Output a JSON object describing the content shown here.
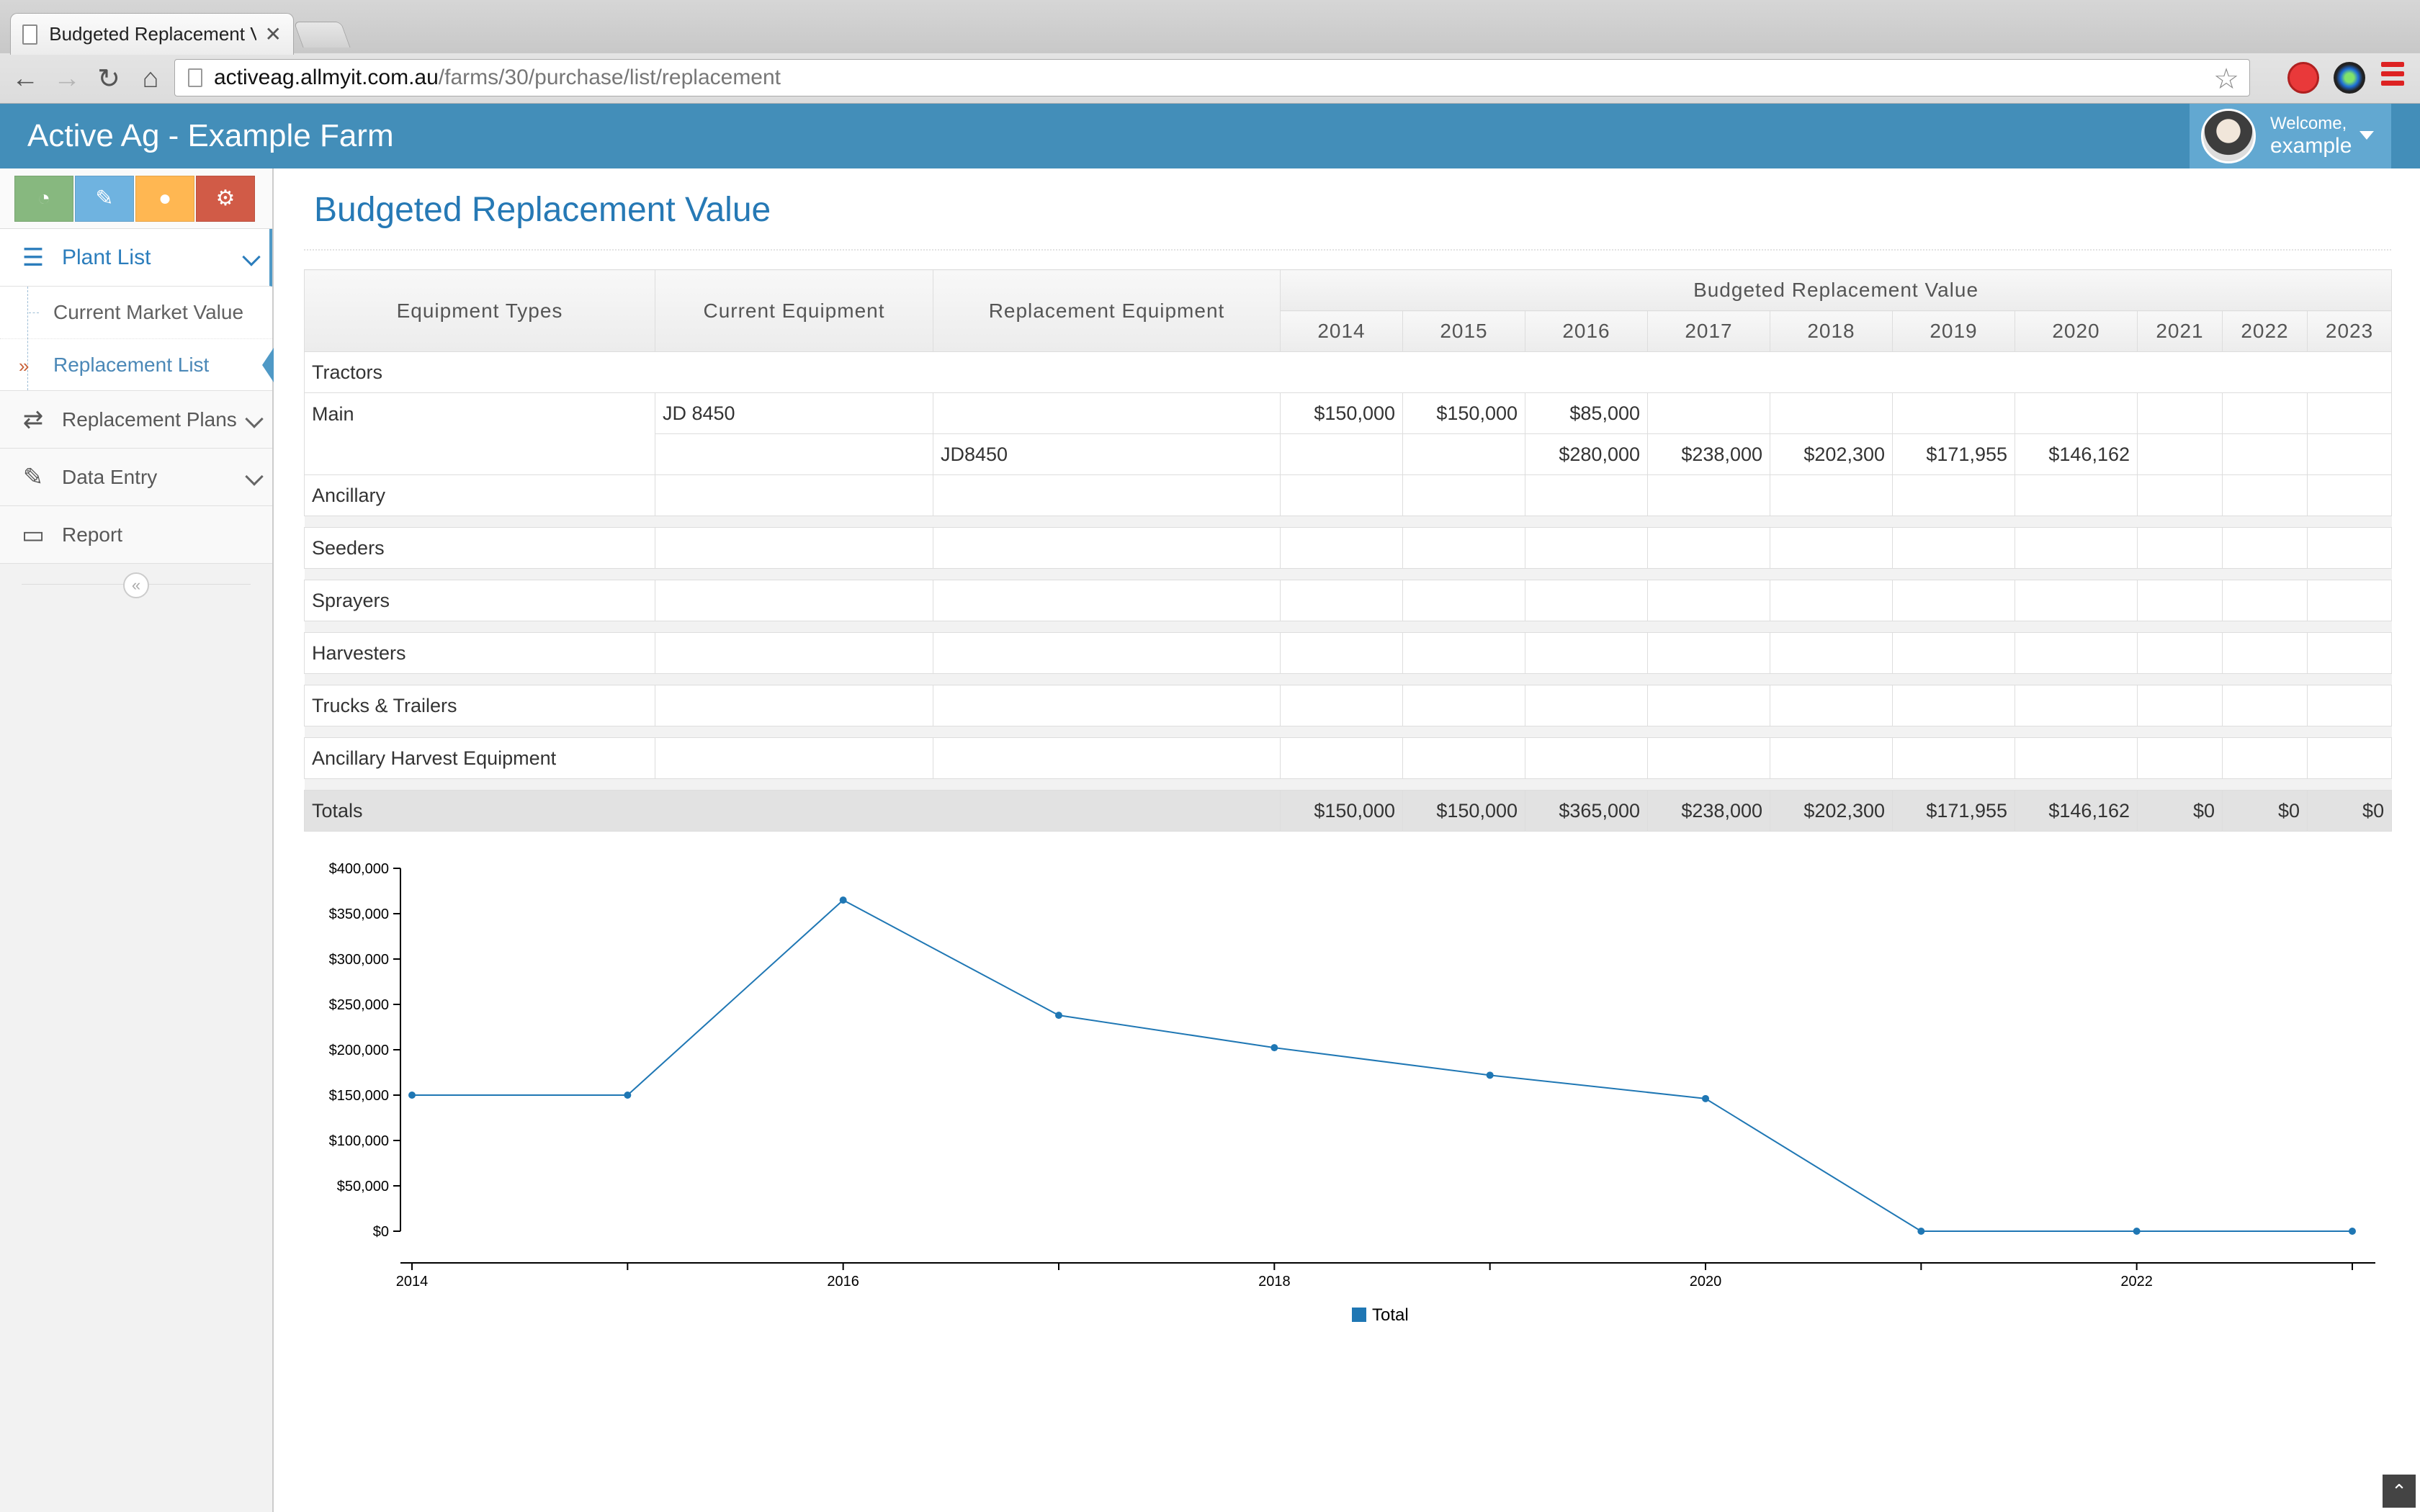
{
  "browser": {
    "tab_title": "Budgeted Replacement Val",
    "url_host": "activeag.allmyit.com.au",
    "url_path": "/farms/30/purchase/list/replacement"
  },
  "header": {
    "brand": "Active Ag - Example Farm",
    "welcome": "Welcome,",
    "username": "example"
  },
  "sidebar": {
    "shortcuts": [
      "dashboard-icon",
      "pencil-icon",
      "user-icon",
      "cogs-icon"
    ],
    "plant_list": "Plant List",
    "plant_sub": [
      "Current Market Value",
      "Replacement List"
    ],
    "replacement_plans": "Replacement Plans",
    "data_entry": "Data Entry",
    "report": "Report"
  },
  "page": {
    "title": "Budgeted Replacement Value"
  },
  "table": {
    "headers": {
      "equipment_types": "Equipment Types",
      "current_equipment": "Current Equipment",
      "replacement_equipment": "Replacement Equipment",
      "brv": "Budgeted Replacement Value",
      "years": [
        "2014",
        "2015",
        "2016",
        "2017",
        "2018",
        "2019",
        "2020",
        "2021",
        "2022",
        "2023"
      ]
    },
    "tractors": {
      "label": "Tractors",
      "main_label": "Main",
      "main_current": "JD 8450",
      "main_values": [
        "$150,000",
        "$150,000",
        "$85,000",
        "",
        "",
        "",
        "",
        "",
        "",
        ""
      ],
      "replacement_name": "JD8450",
      "replacement_values": [
        "",
        "",
        "$280,000",
        "$238,000",
        "$202,300",
        "$171,955",
        "$146,162",
        "",
        "",
        ""
      ],
      "ancillary_label": "Ancillary"
    },
    "categories": [
      "Seeders",
      "Sprayers",
      "Harvesters",
      "Trucks & Trailers",
      "Ancillary Harvest Equipment"
    ],
    "totals_label": "Totals",
    "totals": [
      "$150,000",
      "$150,000",
      "$365,000",
      "$238,000",
      "$202,300",
      "$171,955",
      "$146,162",
      "$0",
      "$0",
      "$0"
    ]
  },
  "chart_data": {
    "type": "line",
    "x": [
      2014,
      2015,
      2016,
      2017,
      2018,
      2019,
      2020,
      2021,
      2022,
      2023
    ],
    "series": [
      {
        "name": "Total",
        "values": [
          150000,
          150000,
          365000,
          238000,
          202300,
          171955,
          146162,
          0,
          0,
          0
        ]
      }
    ],
    "ylim": [
      0,
      400000
    ],
    "yticks": [
      "$0",
      "$50,000",
      "$100,000",
      "$150,000",
      "$200,000",
      "$250,000",
      "$300,000",
      "$350,000",
      "$400,000"
    ],
    "xticks": [
      "2014",
      "2016",
      "2018",
      "2020",
      "2022"
    ],
    "color": "#1f77b4",
    "legend": "bottom-center"
  }
}
